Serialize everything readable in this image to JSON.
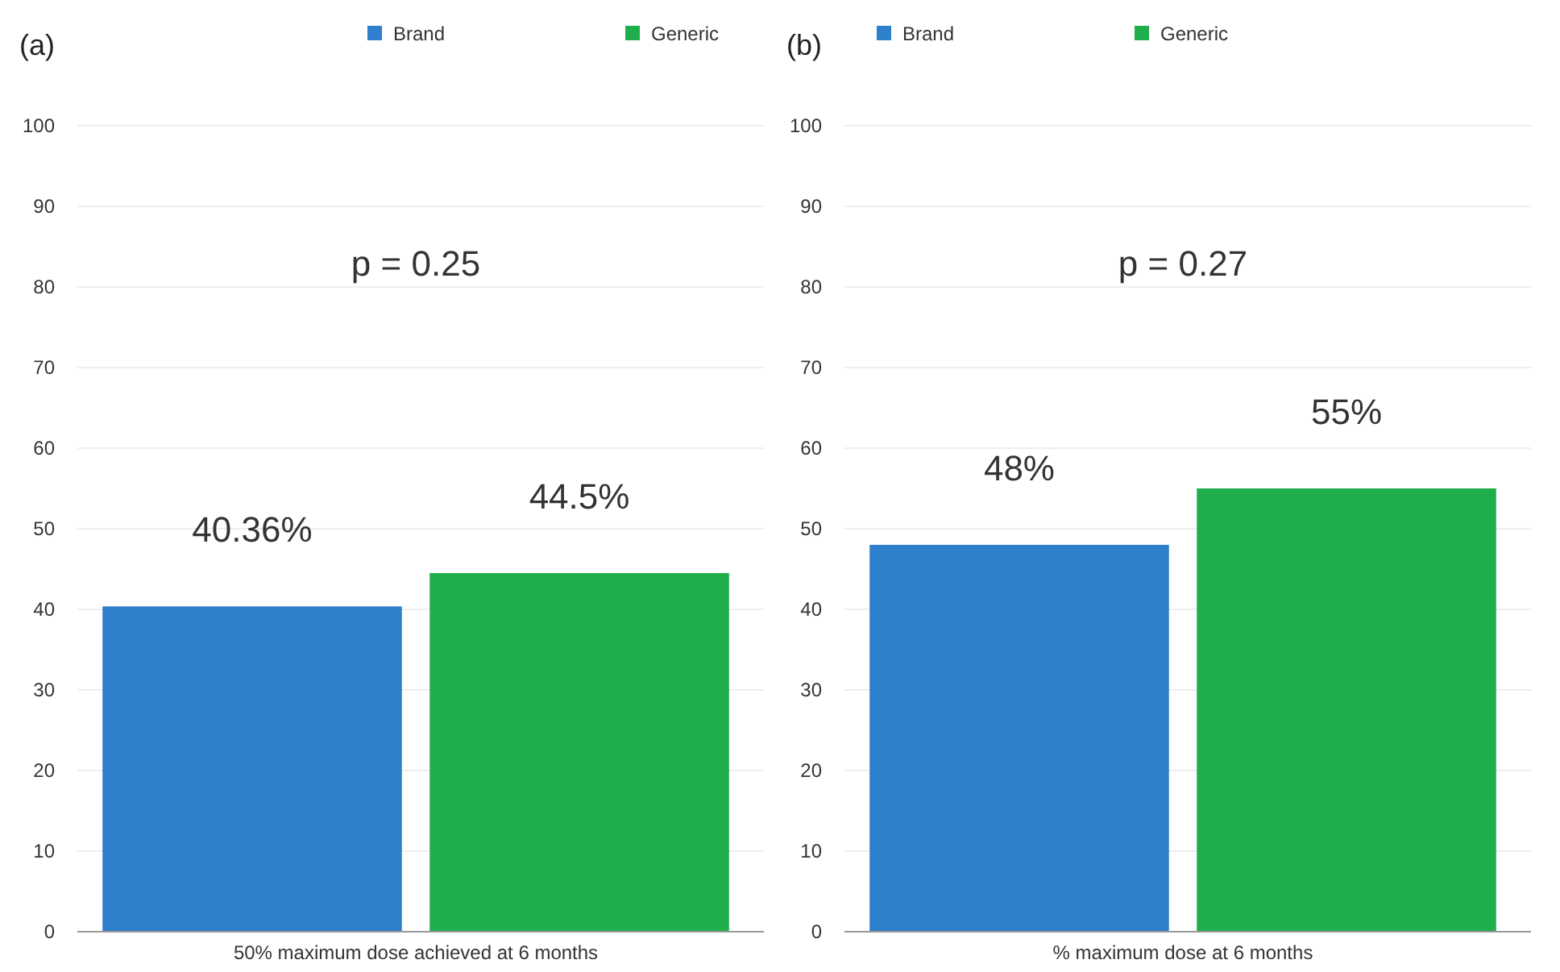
{
  "chart_data": [
    {
      "type": "bar",
      "title": "(a)",
      "categories": [
        "50% maximum dose achieved at 6 months"
      ],
      "series": [
        {
          "name": "Brand",
          "color": "#2f80cc",
          "values": [
            40.36
          ],
          "value_labels": [
            "40.36%"
          ]
        },
        {
          "name": "Generic",
          "color": "#1fae4c",
          "values": [
            44.5
          ],
          "value_labels": [
            "44.5%"
          ]
        }
      ],
      "ylim": [
        0,
        100
      ],
      "yticks": [
        0,
        10,
        20,
        30,
        40,
        50,
        60,
        70,
        80,
        90,
        100
      ],
      "grid": "y",
      "legend": "top",
      "annotations": [
        "p = 0.25"
      ]
    },
    {
      "type": "bar",
      "title": "(b)",
      "categories": [
        "% maximum dose at 6 months"
      ],
      "series": [
        {
          "name": "Brand",
          "color": "#2f80cc",
          "values": [
            48
          ],
          "value_labels": [
            "48%"
          ]
        },
        {
          "name": "Generic",
          "color": "#1fae4c",
          "values": [
            55
          ],
          "value_labels": [
            "55%"
          ]
        }
      ],
      "ylim": [
        0,
        100
      ],
      "yticks": [
        0,
        10,
        20,
        30,
        40,
        50,
        60,
        70,
        80,
        90,
        100
      ],
      "grid": "y",
      "legend": "top",
      "annotations": [
        "p = 0.27"
      ]
    }
  ]
}
